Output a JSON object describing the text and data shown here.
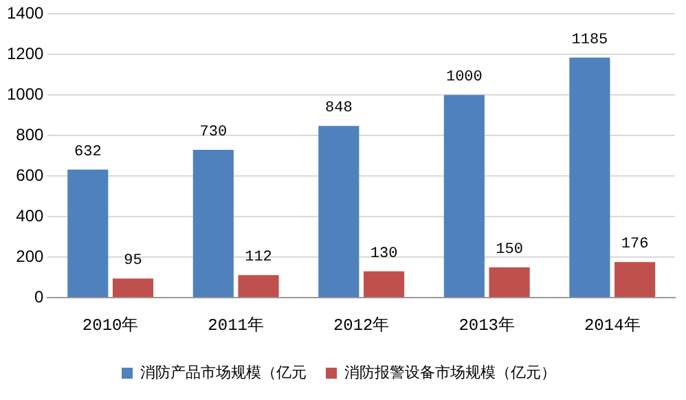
{
  "chart_data": {
    "type": "bar",
    "categories": [
      "2010年",
      "2011年",
      "2012年",
      "2013年",
      "2014年"
    ],
    "series": [
      {
        "name": "消防产品市场规模（亿元",
        "color": "#4f81bd",
        "values": [
          632,
          730,
          848,
          1000,
          1185
        ]
      },
      {
        "name": "消防报警设备市场规模（亿元）",
        "color": "#c0504d",
        "values": [
          95,
          112,
          130,
          150,
          176
        ]
      }
    ],
    "ylim": [
      0,
      1400
    ],
    "yticks": [
      0,
      200,
      400,
      600,
      800,
      1000,
      1200,
      1400
    ],
    "grid": "y",
    "legend": "bottom",
    "data_labels": true
  }
}
